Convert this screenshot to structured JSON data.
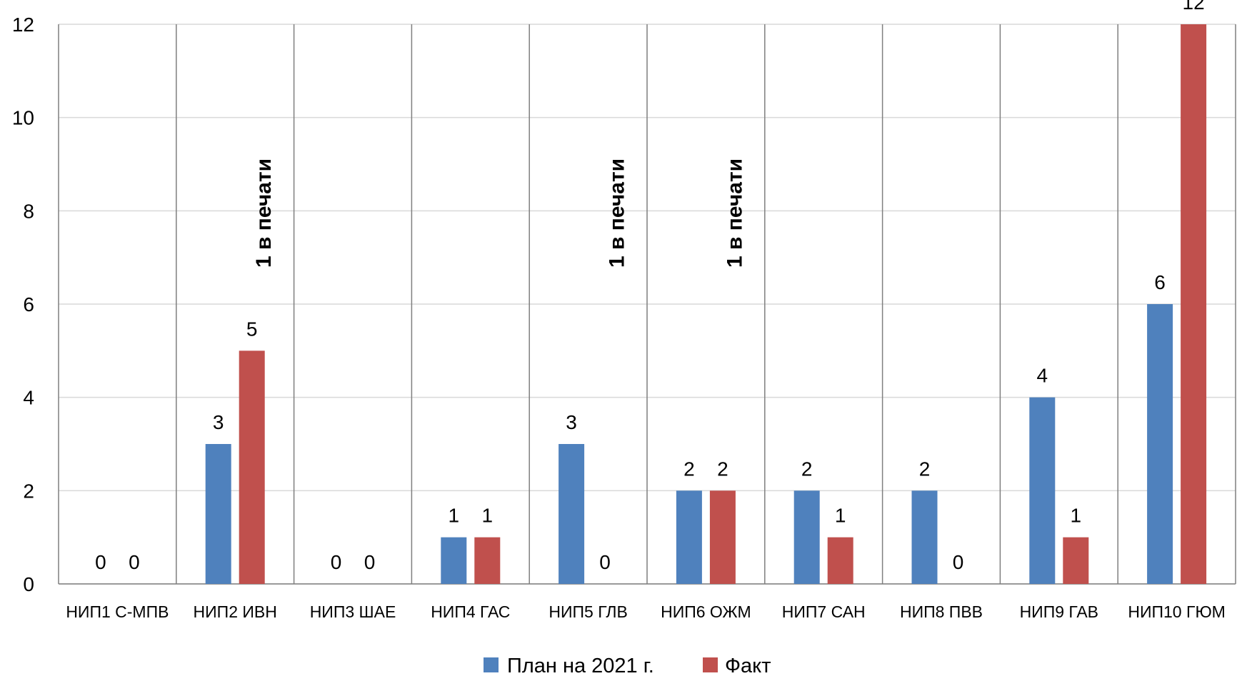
{
  "chart_data": {
    "type": "bar",
    "title": "",
    "xlabel": "",
    "ylabel": "",
    "ylim": [
      0,
      12
    ],
    "yticks": [
      "0",
      "2",
      "4",
      "6",
      "8",
      "10",
      "12"
    ],
    "categories": [
      "НИП1 С-МПВ",
      "НИП2 ИВН",
      "НИП3 ШАЕ",
      "НИП4 ГАС",
      "НИП5 ГЛВ",
      "НИП6 ОЖМ",
      "НИП7 САН",
      "НИП8 ПВВ",
      "НИП9 ГАВ",
      "НИП10 ГЮМ"
    ],
    "series": [
      {
        "name": "План на 2021 г.",
        "color": "#4F81BD",
        "values": [
          0,
          3,
          0,
          1,
          3,
          2,
          2,
          2,
          4,
          6
        ]
      },
      {
        "name": "Факт",
        "color": "#C0504D",
        "values": [
          0,
          5,
          0,
          1,
          0,
          2,
          1,
          0,
          1,
          12
        ]
      }
    ],
    "annotations": [
      {
        "category_index": 1,
        "text": "1 в печати"
      },
      {
        "category_index": 4,
        "text": "1 в печати"
      },
      {
        "category_index": 5,
        "text": "1 в печати"
      }
    ],
    "grid": {
      "horizontal": true,
      "vertical_separators": true
    },
    "legend": "bottom"
  }
}
